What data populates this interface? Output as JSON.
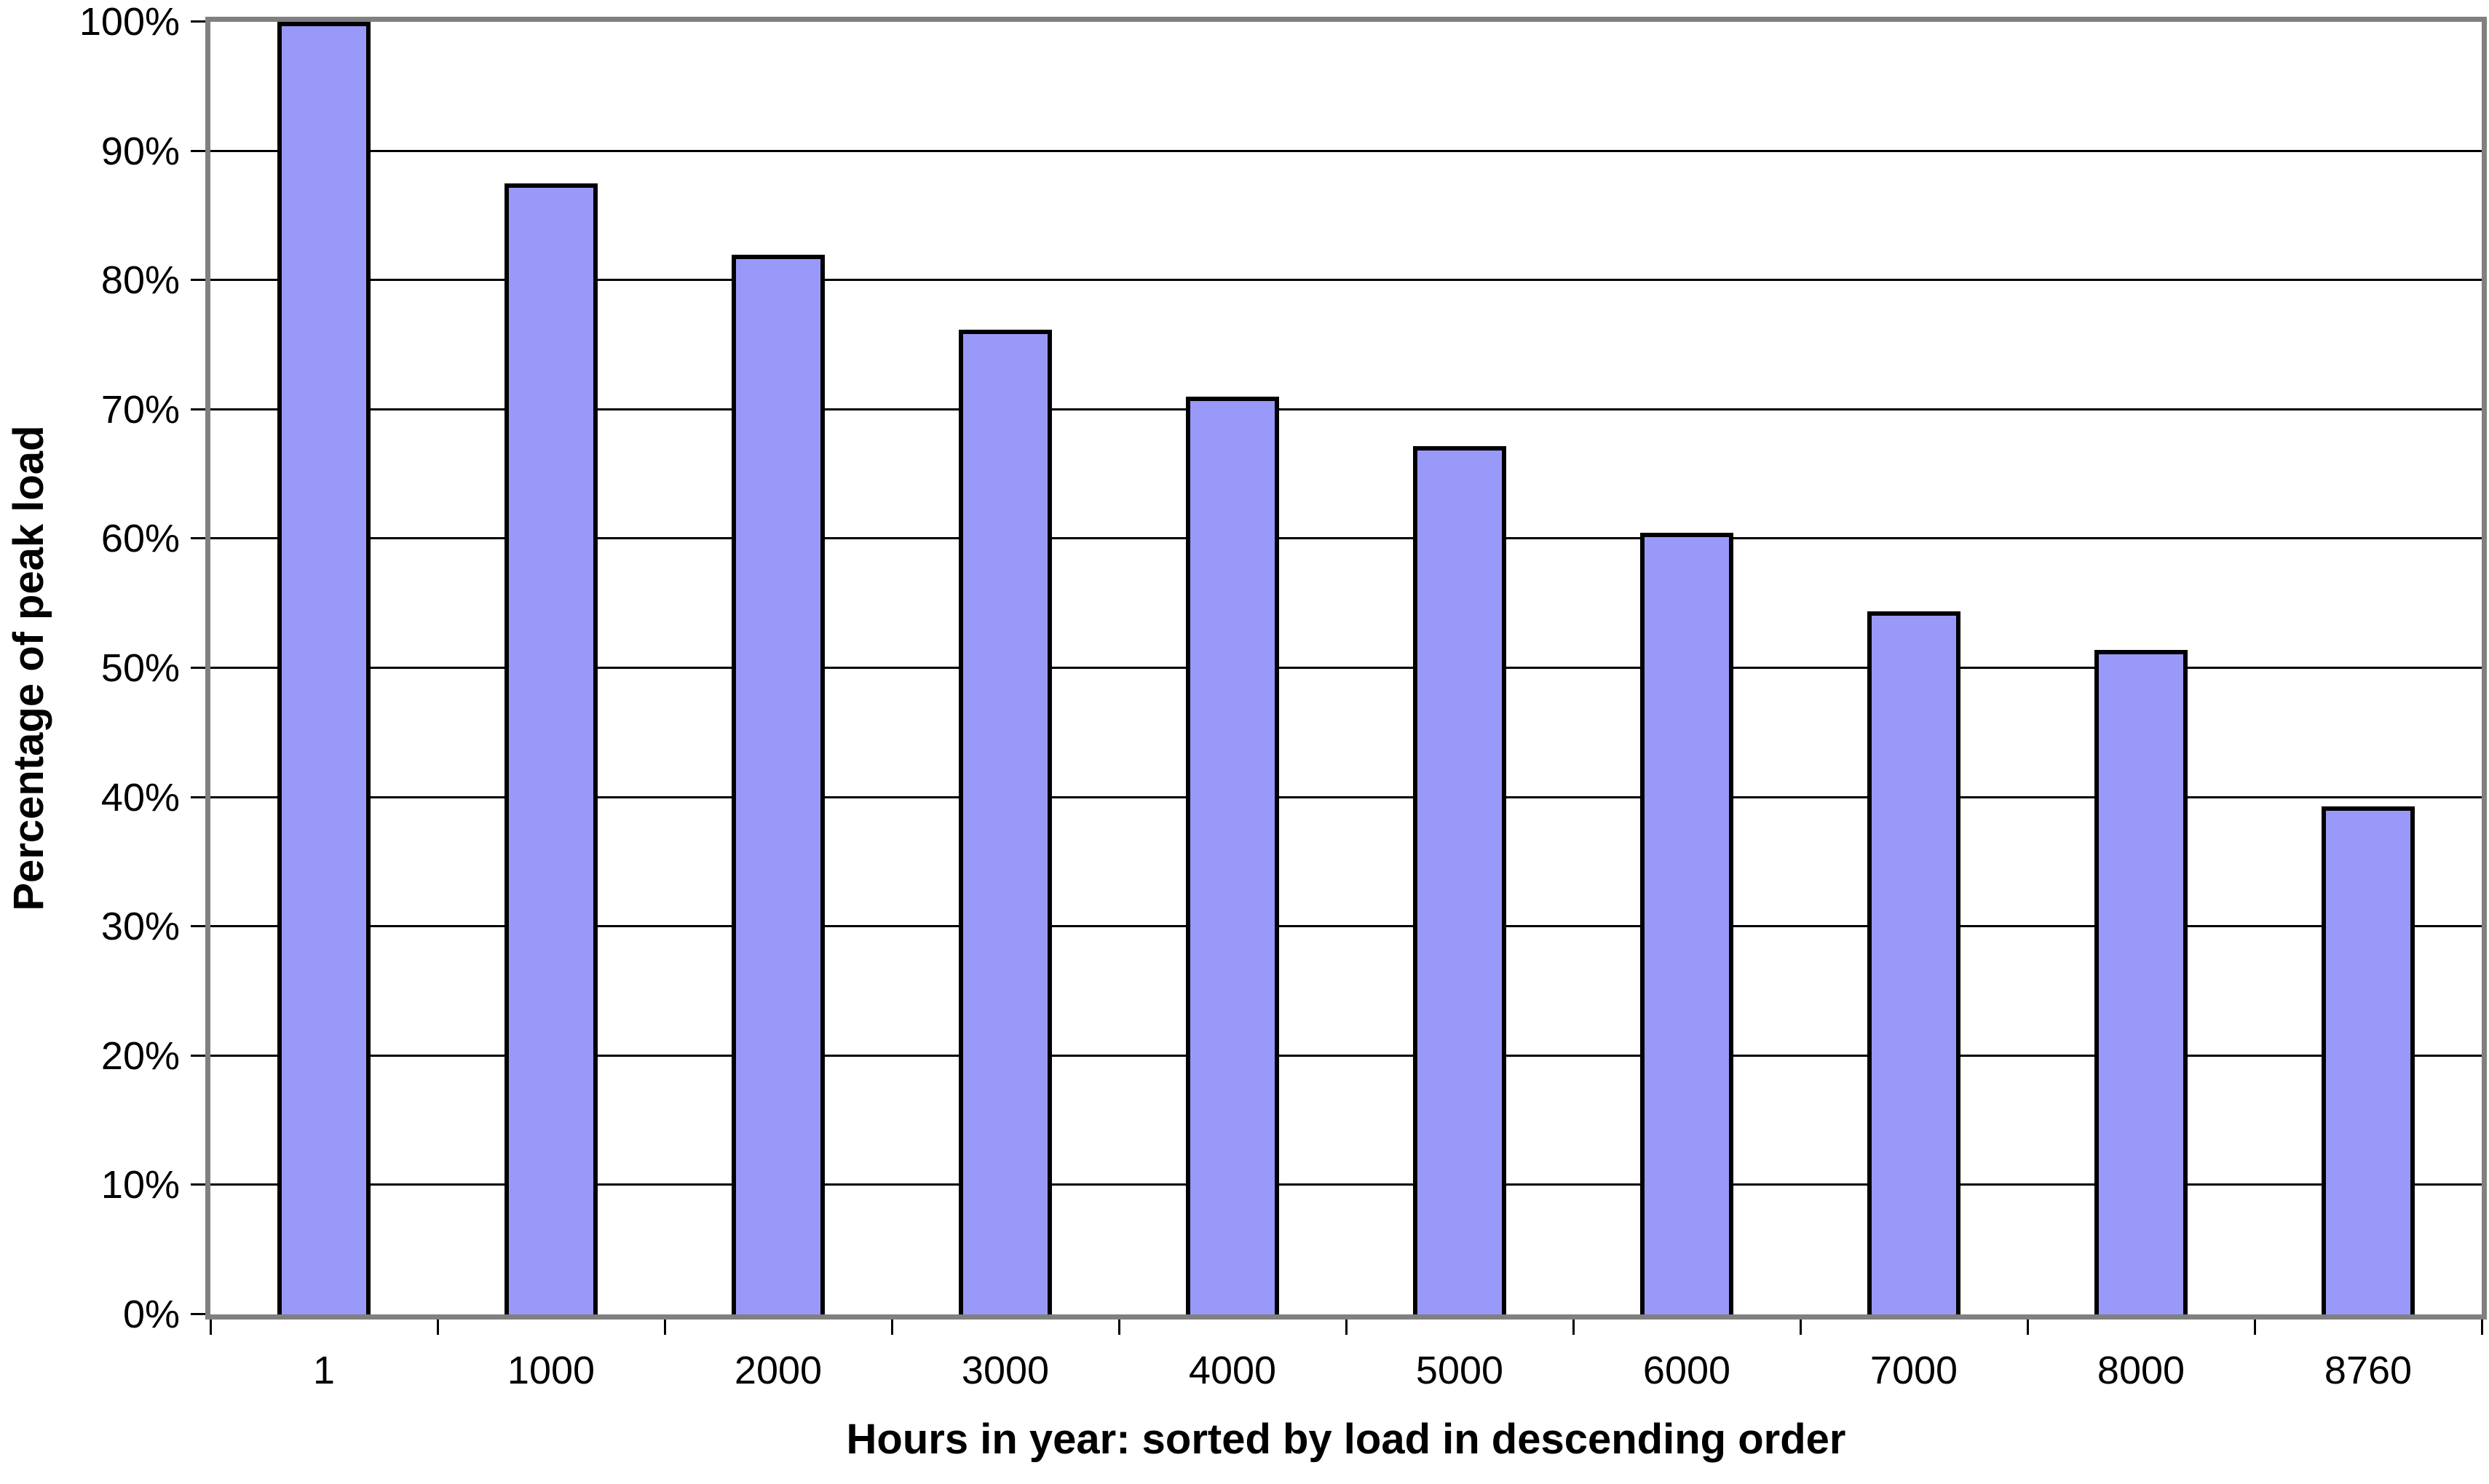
{
  "chart_data": {
    "type": "bar",
    "title": "",
    "categories": [
      "1",
      "1000",
      "2000",
      "3000",
      "4000",
      "5000",
      "6000",
      "7000",
      "8000",
      "8760"
    ],
    "values": [
      100,
      87.5,
      82.0,
      76.2,
      71.0,
      67.2,
      60.5,
      54.4,
      51.4,
      39.3
    ],
    "xlabel": "Hours in year: sorted by load in descending order",
    "ylabel": "Percentage of peak load",
    "ylim": [
      0,
      100
    ],
    "y_tick_step": 10,
    "y_tick_labels": [
      "0%",
      "10%",
      "20%",
      "30%",
      "40%",
      "50%",
      "60%",
      "70%",
      "80%",
      "90%",
      "100%"
    ],
    "grid": true,
    "legend_position": "none",
    "colors": {
      "bar_fill": "#9999FA",
      "bar_border": "#000000",
      "plot_border": "#808080",
      "gridline": "#000000",
      "tick": "#000000",
      "text": "#000000",
      "background": "#FFFFFF"
    }
  }
}
